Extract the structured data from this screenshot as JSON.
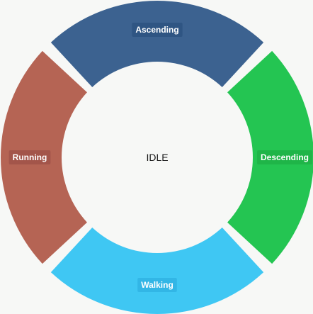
{
  "center_label": "IDLE",
  "segments": [
    {
      "id": "ascending",
      "label": "Ascending",
      "color": "#3c6290",
      "label_bg": "#2f5583"
    },
    {
      "id": "descending",
      "label": "Descending",
      "color": "#24c552",
      "label_bg": "#1fb548"
    },
    {
      "id": "walking",
      "label": "Walking",
      "color": "#3fc7f3",
      "label_bg": "#32b6e6"
    },
    {
      "id": "running",
      "label": "Running",
      "color": "#b56454",
      "label_bg": "#a3554a"
    }
  ]
}
